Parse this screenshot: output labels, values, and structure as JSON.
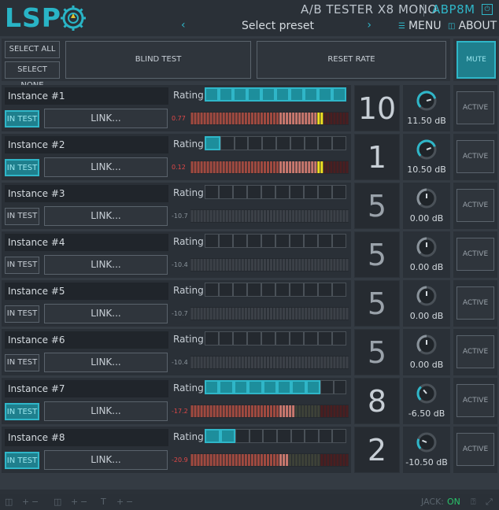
{
  "header": {
    "logo": "LSP",
    "plugin_title": "A/B TESTER X8 MONO",
    "plugin_code": "ABP8M",
    "preset_prev": "‹",
    "preset_label": "Select preset",
    "preset_next": "›",
    "menu_icon": "menu-icon",
    "menu_label": "MENU",
    "about_icon": "about-icon",
    "about_label": "ABOUT",
    "power_icon": "power-icon"
  },
  "controls": {
    "select_all": "SELECT ALL",
    "select_none": "SELECT NONE",
    "blind_test": "BLIND TEST",
    "reset_rate": "RESET RATE",
    "mute": "MUTE"
  },
  "instances": [
    {
      "name": "Instance #1",
      "rating_label": "Rating",
      "rating": 10,
      "in_test_label": "IN TEST",
      "in_test": true,
      "link_label": "LINK...",
      "meter_value": "0.77",
      "meter_level": 0.84,
      "rate": "10",
      "gain": "11.50 dB",
      "gain_level": 0.78,
      "active_label": "ACTIVE"
    },
    {
      "name": "Instance #2",
      "rating_label": "Rating",
      "rating": 1,
      "in_test_label": "IN TEST",
      "in_test": true,
      "link_label": "LINK...",
      "meter_value": "0.12",
      "meter_level": 0.84,
      "rate": "1",
      "gain": "10.50 dB",
      "gain_level": 0.76,
      "active_label": "ACTIVE"
    },
    {
      "name": "Instance #3",
      "rating_label": "Rating",
      "rating": 0,
      "in_test_label": "IN TEST",
      "in_test": false,
      "link_label": "LINK...",
      "meter_value": "-10.7",
      "meter_level": 0.0,
      "rate": "5",
      "gain": "0.00 dB",
      "gain_level": 0.5,
      "active_label": "ACTIVE"
    },
    {
      "name": "Instance #4",
      "rating_label": "Rating",
      "rating": 0,
      "in_test_label": "IN TEST",
      "in_test": false,
      "link_label": "LINK...",
      "meter_value": "-10.4",
      "meter_level": 0.0,
      "rate": "5",
      "gain": "0.00 dB",
      "gain_level": 0.5,
      "active_label": "ACTIVE"
    },
    {
      "name": "Instance #5",
      "rating_label": "Rating",
      "rating": 0,
      "in_test_label": "IN TEST",
      "in_test": false,
      "link_label": "LINK...",
      "meter_value": "-10.7",
      "meter_level": 0.0,
      "rate": "5",
      "gain": "0.00 dB",
      "gain_level": 0.5,
      "active_label": "ACTIVE"
    },
    {
      "name": "Instance #6",
      "rating_label": "Rating",
      "rating": 0,
      "in_test_label": "IN TEST",
      "in_test": false,
      "link_label": "LINK...",
      "meter_value": "-10.4",
      "meter_level": 0.0,
      "rate": "5",
      "gain": "0.00 dB",
      "gain_level": 0.5,
      "active_label": "ACTIVE"
    },
    {
      "name": "Instance #7",
      "rating_label": "Rating",
      "rating": 8,
      "in_test_label": "IN TEST",
      "in_test": true,
      "link_label": "LINK...",
      "meter_value": "-17.2",
      "meter_level": 0.66,
      "rate": "8",
      "gain": "-6.50 dB",
      "gain_level": 0.35,
      "active_label": "ACTIVE"
    },
    {
      "name": "Instance #8",
      "rating_label": "Rating",
      "rating": 2,
      "in_test_label": "IN TEST",
      "in_test": true,
      "link_label": "LINK...",
      "meter_value": "-20.9",
      "meter_level": 0.62,
      "rate": "2",
      "gain": "-10.50 dB",
      "gain_level": 0.25,
      "active_label": "ACTIVE"
    }
  ],
  "footer": {
    "jack_label": "JACK:",
    "jack_status": "ON",
    "controls": [
      "+",
      "−",
      "+",
      "−",
      "+",
      "−"
    ]
  },
  "colors": {
    "accent": "#2fb6c8",
    "background": "#343b43",
    "meter_hot": "#e04848",
    "meter_peak": "#f0e020"
  }
}
